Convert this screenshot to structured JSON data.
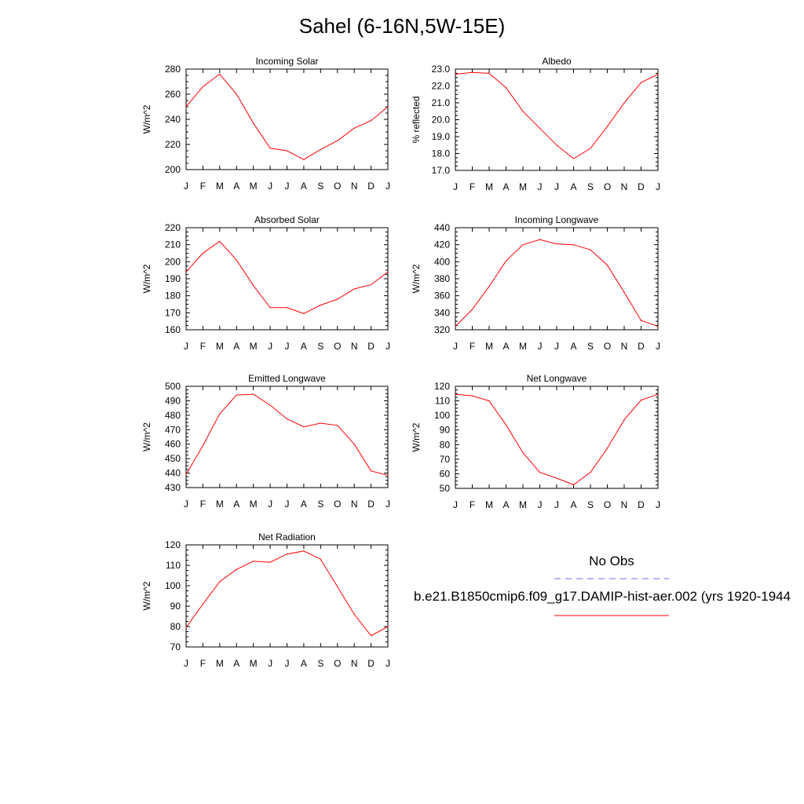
{
  "title": "Sahel (6-16N,5W-15E)",
  "colors": {
    "model": "#ff0000",
    "obs": "#6e6ee6",
    "axis": "#000000"
  },
  "legend": {
    "obs_label": "No Obs",
    "model_label": "b.e21.B1850cmip6.f09_g17.DAMIP-hist-aer.002 (yrs 1920-1944"
  },
  "chart_data": [
    {
      "type": "line",
      "title": "Incoming Solar",
      "ylabel": "W/m^2",
      "categories": [
        "J",
        "F",
        "M",
        "A",
        "M",
        "J",
        "J",
        "A",
        "S",
        "O",
        "N",
        "D",
        "J"
      ],
      "ylim": [
        200,
        280
      ],
      "yticks": [
        200,
        220,
        240,
        260,
        280
      ],
      "ytick_labels": [
        "200",
        "220",
        "240",
        "260",
        "280"
      ],
      "series": [
        {
          "values": [
            250,
            266,
            276,
            260,
            237,
            217,
            215,
            208,
            216,
            223,
            233,
            239,
            250
          ]
        }
      ]
    },
    {
      "type": "line",
      "title": "Albedo",
      "ylabel": "% reflected",
      "categories": [
        "J",
        "F",
        "M",
        "A",
        "M",
        "J",
        "J",
        "A",
        "S",
        "O",
        "N",
        "D",
        "J"
      ],
      "ylim": [
        17.0,
        23.0
      ],
      "yticks": [
        17,
        18,
        19,
        20,
        21,
        22,
        23
      ],
      "ytick_labels": [
        "17.0",
        "18.0",
        "19.0",
        "20.0",
        "21.0",
        "22.0",
        "23.0"
      ],
      "series": [
        {
          "values": [
            22.7,
            22.8,
            22.75,
            21.9,
            20.5,
            19.5,
            18.5,
            17.7,
            18.3,
            19.6,
            21.0,
            22.2,
            22.7
          ]
        }
      ]
    },
    {
      "type": "line",
      "title": "Absorbed Solar",
      "ylabel": "W/m^2",
      "categories": [
        "J",
        "F",
        "M",
        "A",
        "M",
        "J",
        "J",
        "A",
        "S",
        "O",
        "N",
        "D",
        "J"
      ],
      "ylim": [
        160,
        220
      ],
      "yticks": [
        160,
        170,
        180,
        190,
        200,
        210,
        220
      ],
      "ytick_labels": [
        "160",
        "170",
        "180",
        "190",
        "200",
        "210",
        "220"
      ],
      "series": [
        {
          "values": [
            194,
            205,
            212,
            201,
            186,
            173,
            173,
            169.5,
            174.5,
            178,
            184,
            186.5,
            194
          ]
        }
      ]
    },
    {
      "type": "line",
      "title": "Incoming Longwave",
      "ylabel": "W/m^2",
      "categories": [
        "J",
        "F",
        "M",
        "A",
        "M",
        "J",
        "J",
        "A",
        "S",
        "O",
        "N",
        "D",
        "J"
      ],
      "ylim": [
        320,
        440
      ],
      "yticks": [
        320,
        340,
        360,
        380,
        400,
        420,
        440
      ],
      "ytick_labels": [
        "320",
        "340",
        "360",
        "380",
        "400",
        "420",
        "440"
      ],
      "series": [
        {
          "values": [
            324,
            344,
            371,
            401,
            420,
            426,
            421,
            420,
            414,
            396,
            364,
            331,
            324
          ]
        }
      ]
    },
    {
      "type": "line",
      "title": "Emitted Longwave",
      "ylabel": "W/m^2",
      "categories": [
        "J",
        "F",
        "M",
        "A",
        "M",
        "J",
        "J",
        "A",
        "S",
        "O",
        "N",
        "D",
        "J"
      ],
      "ylim": [
        430,
        500
      ],
      "yticks": [
        430,
        440,
        450,
        460,
        470,
        480,
        490,
        500
      ],
      "ytick_labels": [
        "430",
        "440",
        "450",
        "460",
        "470",
        "480",
        "490",
        "500"
      ],
      "series": [
        {
          "values": [
            439,
            459,
            481,
            494,
            494.5,
            487,
            477.5,
            472,
            474.5,
            473,
            460,
            441.5,
            438.5
          ]
        }
      ]
    },
    {
      "type": "line",
      "title": "Net Longwave",
      "ylabel": "W/m^2",
      "categories": [
        "J",
        "F",
        "M",
        "A",
        "M",
        "J",
        "J",
        "A",
        "S",
        "O",
        "N",
        "D",
        "J"
      ],
      "ylim": [
        50,
        120
      ],
      "yticks": [
        50,
        60,
        70,
        80,
        90,
        100,
        110,
        120
      ],
      "ytick_labels": [
        "50",
        "60",
        "70",
        "80",
        "90",
        "100",
        "110",
        "120"
      ],
      "series": [
        {
          "values": [
            114.5,
            113.5,
            110,
            93.5,
            74.5,
            61,
            57,
            52.5,
            61,
            77.5,
            97,
            110.5,
            114.5
          ]
        }
      ]
    },
    {
      "type": "line",
      "title": "Net Radiation",
      "ylabel": "W/m^2",
      "categories": [
        "J",
        "F",
        "M",
        "A",
        "M",
        "J",
        "J",
        "A",
        "S",
        "O",
        "N",
        "D",
        "J"
      ],
      "ylim": [
        70,
        120
      ],
      "yticks": [
        70,
        80,
        90,
        100,
        110,
        120
      ],
      "ytick_labels": [
        "70",
        "80",
        "90",
        "100",
        "110",
        "120"
      ],
      "series": [
        {
          "values": [
            79.5,
            91,
            102,
            108,
            112,
            111.5,
            115.5,
            117,
            113,
            99.5,
            86,
            75.5,
            80
          ]
        }
      ]
    }
  ]
}
